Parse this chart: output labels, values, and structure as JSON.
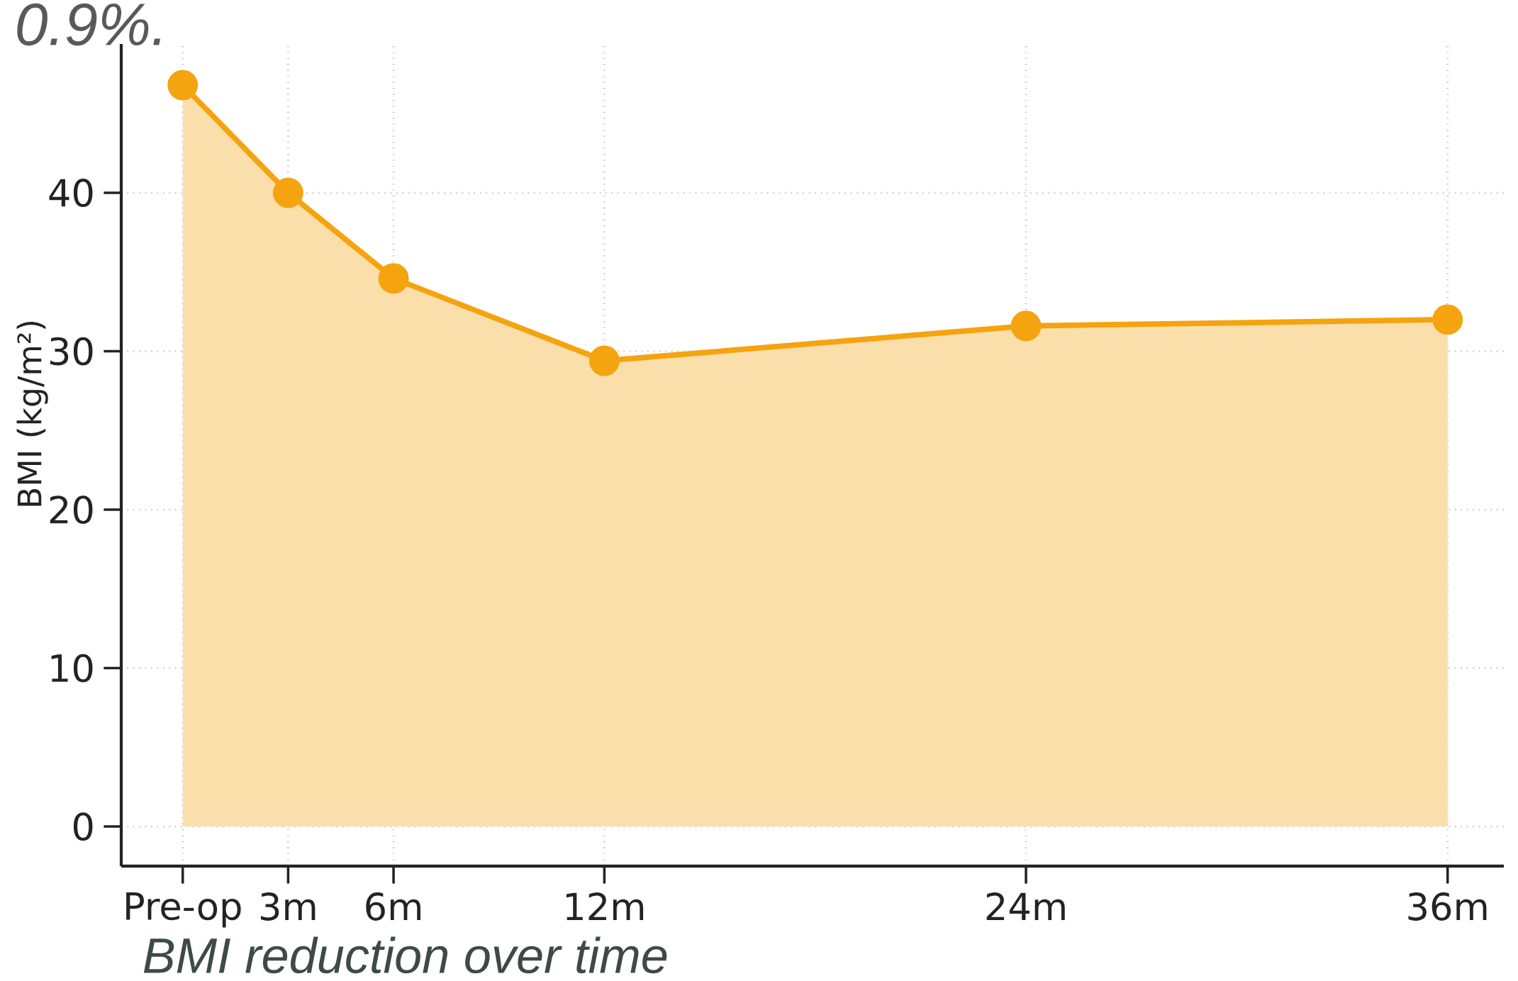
{
  "chart_data": {
    "type": "area",
    "title": "BMI reduction over time",
    "ylabel": "BMI (kg/m²)",
    "annotations": [
      "0.9%."
    ],
    "x": [
      0,
      3,
      6,
      12,
      24,
      36
    ],
    "series": [
      {
        "color": "#f5a30f",
        "values": [
          46.8,
          40,
          34.6,
          29.4,
          31.6,
          32.0
        ]
      }
    ],
    "xlim": [
      -1.75,
      37.6
    ],
    "ylim": [
      -2.5,
      49.4
    ],
    "xticks": [
      {
        "value": 0,
        "label": "Pre-op"
      },
      {
        "value": 3,
        "label": "3m"
      },
      {
        "value": 6,
        "label": "6m"
      },
      {
        "value": 12,
        "label": "12m"
      },
      {
        "value": 24,
        "label": "24m"
      },
      {
        "value": 36,
        "label": "36m"
      }
    ],
    "yticks": [
      0,
      10,
      20,
      30,
      40
    ],
    "grid": true,
    "marker": "circle",
    "line_style": "solid"
  }
}
